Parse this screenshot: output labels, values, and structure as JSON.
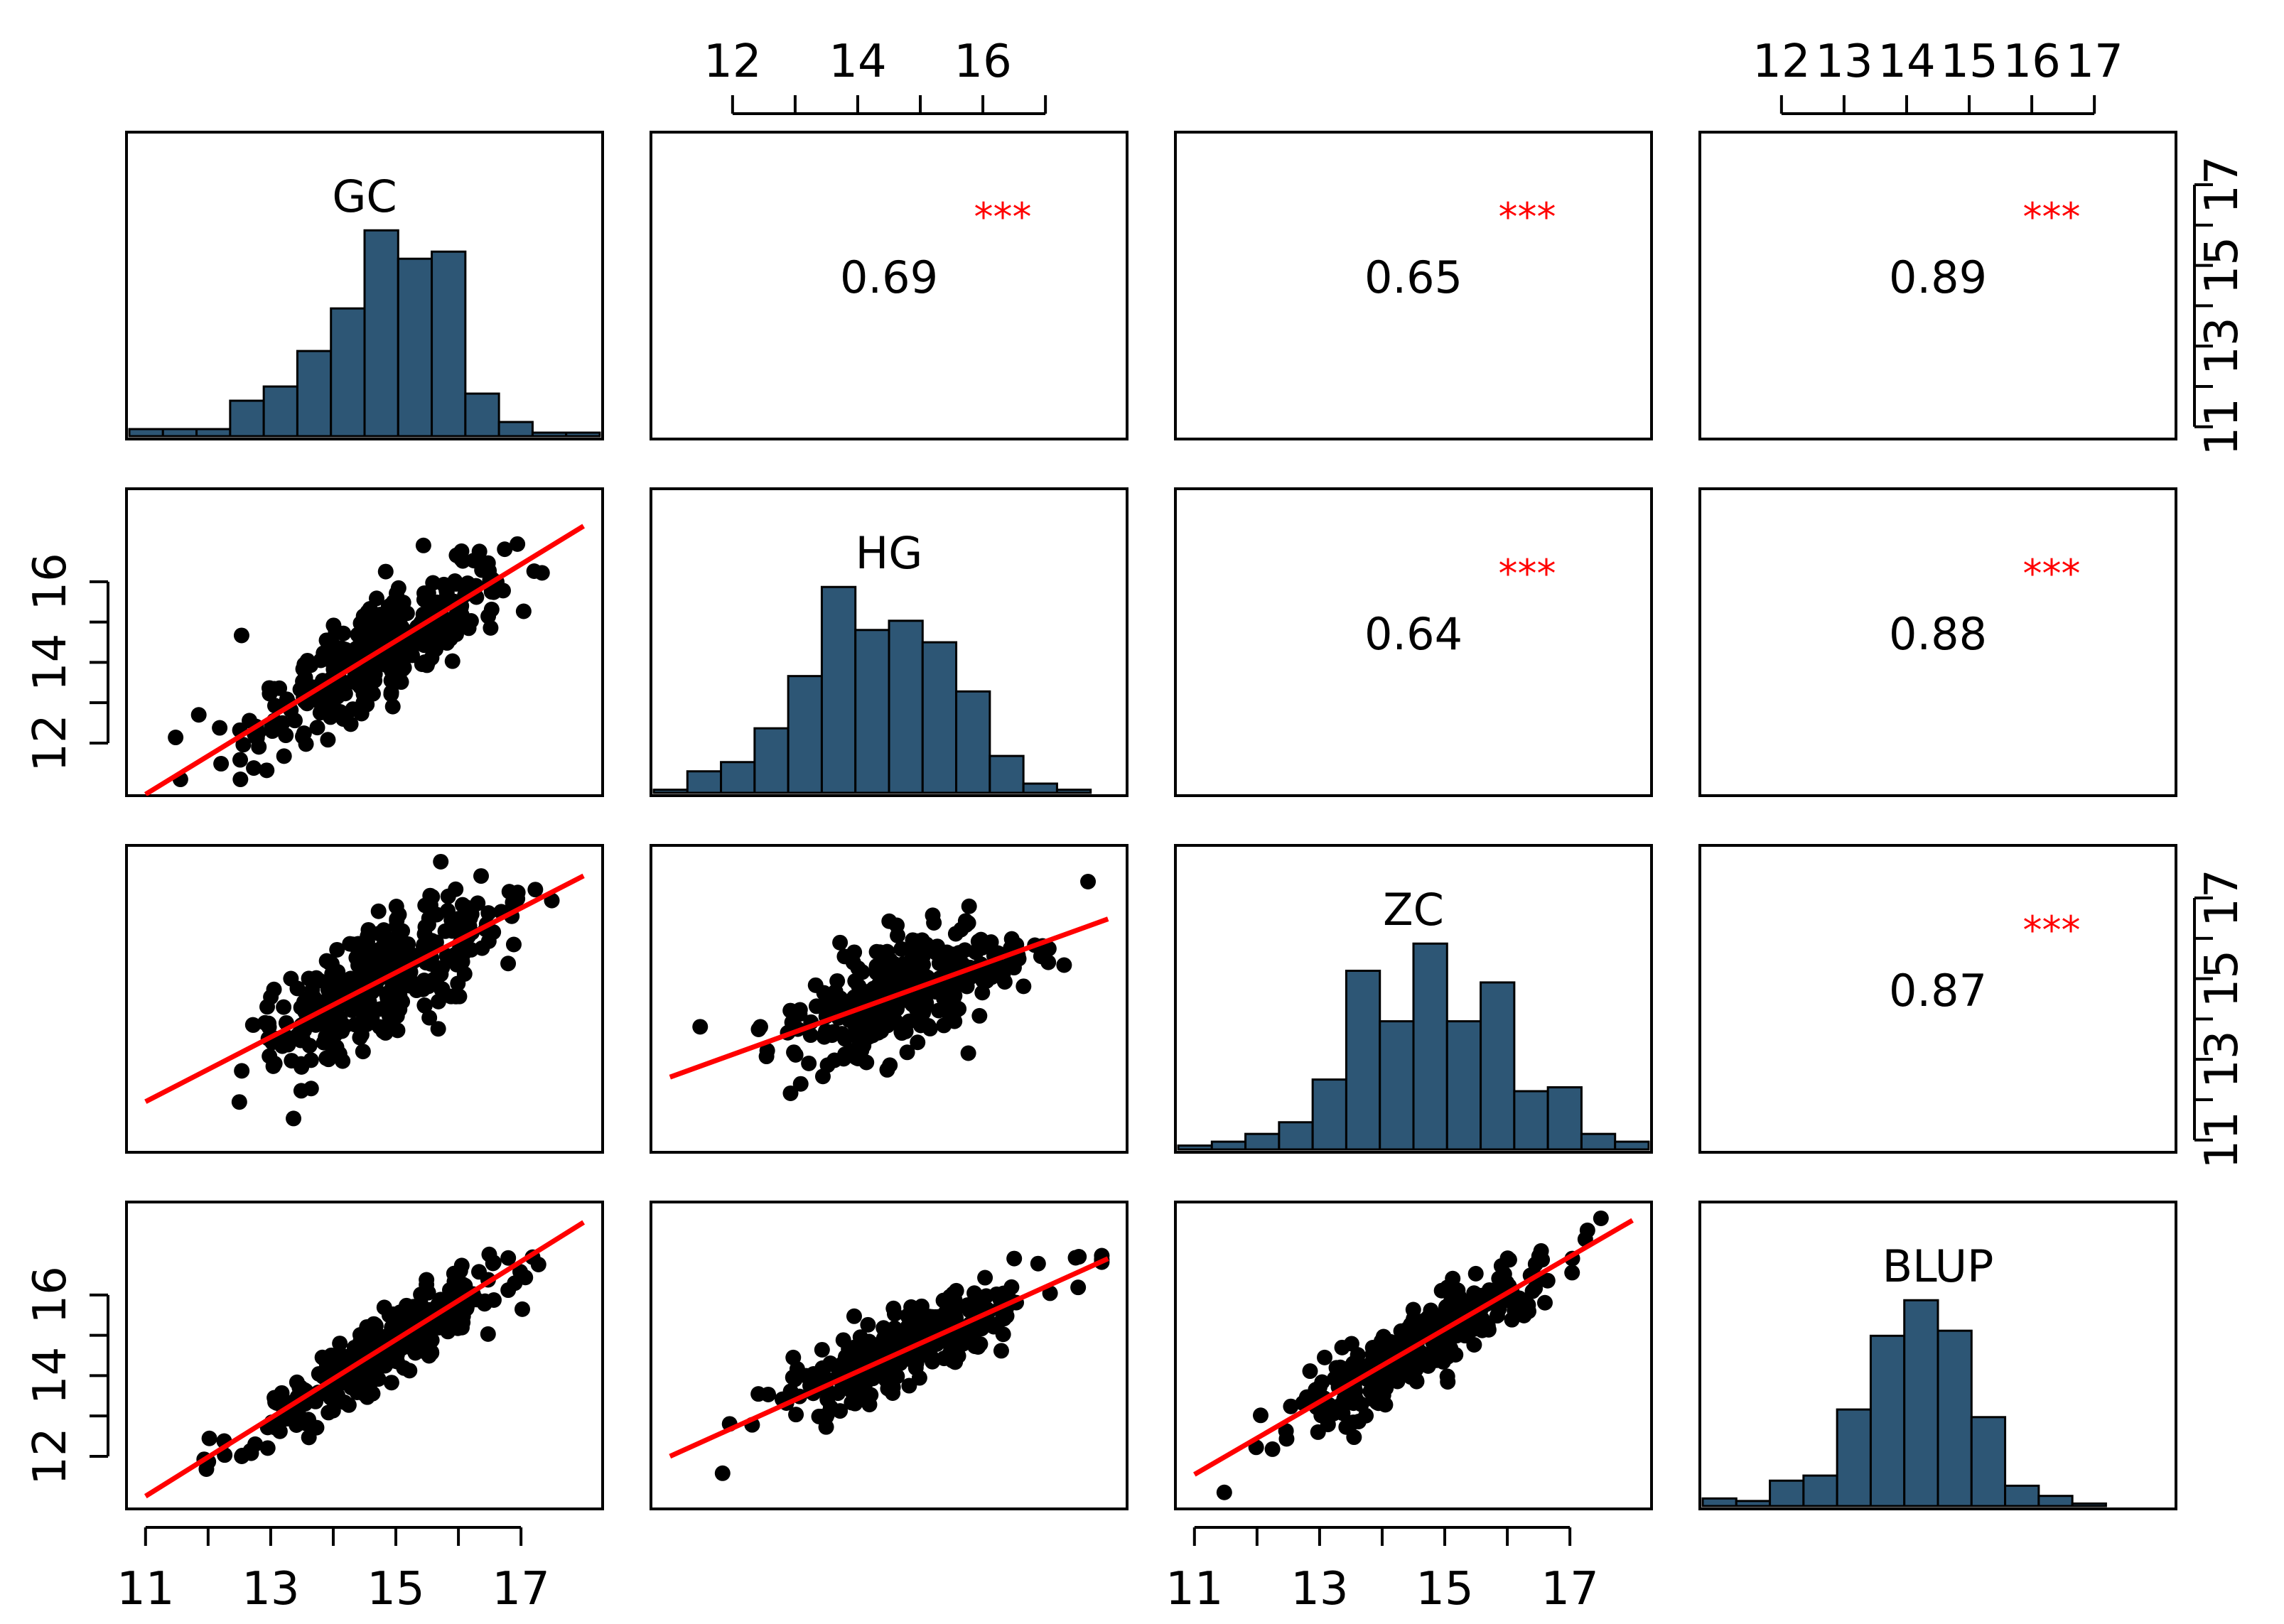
{
  "chart_data": {
    "type": "scatter-matrix",
    "variables": [
      "GC",
      "HG",
      "ZC",
      "BLUP"
    ],
    "range": [
      11,
      18
    ],
    "colors": {
      "histogram_fill": "#2d5675",
      "points": "#000000",
      "regression_line": "#ff0000",
      "significance": "#ff0000"
    },
    "correlations": [
      {
        "row": 0,
        "col": 1,
        "value": "0.69",
        "stars": "***"
      },
      {
        "row": 0,
        "col": 2,
        "value": "0.65",
        "stars": "***"
      },
      {
        "row": 0,
        "col": 3,
        "value": "0.89",
        "stars": "***"
      },
      {
        "row": 1,
        "col": 2,
        "value": "0.64",
        "stars": "***"
      },
      {
        "row": 1,
        "col": 3,
        "value": "0.88",
        "stars": "***"
      },
      {
        "row": 2,
        "col": 3,
        "value": "0.87",
        "stars": "***"
      }
    ],
    "histograms": {
      "GC": {
        "breaks": [
          11,
          11.5,
          12,
          12.5,
          13,
          13.5,
          14,
          14.5,
          15,
          15.5,
          16,
          16.5,
          17,
          17.5,
          18
        ],
        "counts": [
          2,
          2,
          2,
          10,
          14,
          24,
          36,
          58,
          50,
          52,
          12,
          4,
          1,
          1
        ]
      },
      "HG": {
        "breaks": [
          11,
          11.5,
          12,
          12.5,
          13,
          13.5,
          14,
          14.5,
          15,
          15.5,
          16,
          16.5,
          17,
          17.5,
          18
        ],
        "counts": [
          1,
          7,
          10,
          21,
          38,
          67,
          53,
          56,
          49,
          33,
          12,
          3,
          1,
          0
        ]
      },
      "ZC": {
        "breaks": [
          11,
          11.5,
          12,
          12.5,
          13,
          13.5,
          14,
          14.5,
          15,
          15.5,
          16,
          16.5,
          17,
          17.5,
          18
        ],
        "counts": [
          1,
          2,
          4,
          7,
          18,
          46,
          33,
          53,
          33,
          43,
          15,
          16,
          4,
          2
        ]
      },
      "BLUP": {
        "breaks": [
          11,
          11.5,
          12,
          12.5,
          13,
          13.5,
          14,
          14.5,
          15,
          15.5,
          16,
          16.5,
          17,
          17.5,
          18
        ],
        "counts": [
          3,
          2,
          10,
          12,
          38,
          67,
          81,
          69,
          35,
          8,
          4,
          1,
          0,
          0
        ]
      }
    },
    "scatter_panels": [
      {
        "row": 1,
        "col": 0,
        "x": "GC",
        "y": "HG",
        "r": 0.69,
        "fit": {
          "intercept": 0.28,
          "slope": 0.95
        }
      },
      {
        "row": 2,
        "col": 0,
        "x": "GC",
        "y": "ZC",
        "r": 0.65,
        "fit": {
          "intercept": 3.15,
          "slope": 0.8
        }
      },
      {
        "row": 3,
        "col": 0,
        "x": "GC",
        "y": "BLUP",
        "r": 0.89,
        "fit": {
          "intercept": 0.34,
          "slope": 0.97
        }
      },
      {
        "row": 2,
        "col": 1,
        "x": "HG",
        "y": "ZC",
        "r": 0.64,
        "fit": {
          "intercept": 6.4,
          "slope": 0.56
        }
      },
      {
        "row": 3,
        "col": 1,
        "x": "HG",
        "y": "BLUP",
        "r": 0.88,
        "fit": {
          "intercept": 4.3,
          "slope": 0.7
        }
      },
      {
        "row": 3,
        "col": 2,
        "x": "ZC",
        "y": "BLUP",
        "r": 0.87,
        "fit": {
          "intercept": 1.65,
          "slope": 0.9
        }
      }
    ],
    "axes": {
      "top": [
        {
          "col": 1,
          "ticks": [
            12,
            14,
            16
          ],
          "labels": [
            "12",
            "14",
            "16"
          ],
          "minor": [
            13,
            15,
            17
          ]
        },
        {
          "col": 3,
          "ticks": [
            12,
            13,
            14,
            15,
            16,
            17
          ],
          "labels": [
            "12",
            "13",
            "14",
            "15",
            "16",
            "17"
          ],
          "minor": []
        }
      ],
      "bottom": [
        {
          "col": 0,
          "ticks": [
            11,
            13,
            15,
            17
          ],
          "labels": [
            "11",
            "13",
            "15",
            "17"
          ],
          "minor": [
            12,
            14,
            16
          ]
        },
        {
          "col": 2,
          "ticks": [
            11,
            13,
            15,
            17
          ],
          "labels": [
            "11",
            "13",
            "15",
            "17"
          ],
          "minor": [
            12,
            14,
            16
          ]
        }
      ],
      "left": [
        {
          "row": 1,
          "ticks": [
            12,
            14,
            16
          ],
          "labels": [
            "12",
            "14",
            "16"
          ],
          "minor": [
            13,
            15
          ]
        },
        {
          "row": 3,
          "ticks": [
            12,
            14,
            16
          ],
          "labels": [
            "12",
            "14",
            "16"
          ],
          "minor": [
            13,
            15
          ]
        }
      ],
      "right": [
        {
          "row": 0,
          "ticks": [
            11,
            13,
            15,
            17
          ],
          "labels": [
            "11",
            "13",
            "15",
            "17"
          ],
          "minor": [
            12,
            14,
            16
          ]
        },
        {
          "row": 2,
          "ticks": [
            11,
            13,
            15,
            17
          ],
          "labels": [
            "11",
            "13",
            "15",
            "17"
          ],
          "minor": [
            12,
            14,
            16
          ]
        }
      ]
    }
  }
}
